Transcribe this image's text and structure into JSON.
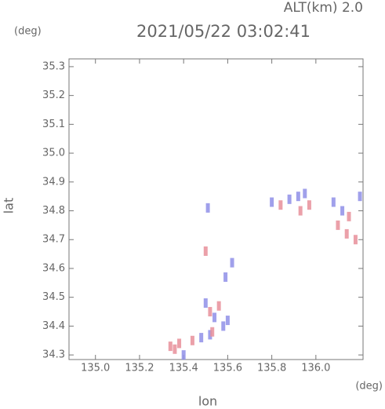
{
  "chart_data": {
    "type": "scatter",
    "title": "2021/05/22 03:02:41",
    "altitude_label": "ALT(km) 2.0",
    "y_unit": "(deg)",
    "x_unit": "(deg)",
    "xlabel": "lon",
    "ylabel": "lat",
    "xlim": [
      134.88,
      136.214
    ],
    "ylim": [
      34.284,
      35.327
    ],
    "xticks": [
      {
        "value": 135.0,
        "label": "135.0"
      },
      135.2,
      135.4,
      135.6,
      135.8,
      {
        "value": 136.0,
        "label": "136.0"
      }
    ],
    "yticks": [
      34.3,
      34.4,
      34.5,
      34.6,
      34.7,
      34.8,
      34.9,
      {
        "value": 35.0,
        "label": "35.0"
      },
      35.1,
      35.2,
      35.3
    ],
    "series": [
      {
        "color": "#8f8fe8",
        "x": [
          135.8,
          135.88,
          135.92,
          135.95,
          136.08,
          136.12,
          136.2,
          135.5,
          135.54,
          135.58,
          135.6,
          135.62,
          135.59,
          135.4,
          135.48,
          135.52,
          135.51
        ],
        "y": [
          34.83,
          34.84,
          34.85,
          34.86,
          34.83,
          34.8,
          34.85,
          34.48,
          34.43,
          34.4,
          34.42,
          34.62,
          34.57,
          34.3,
          34.36,
          34.37,
          34.81
        ]
      },
      {
        "color": "#e88f9a",
        "x": [
          135.84,
          135.97,
          135.93,
          136.15,
          136.1,
          136.14,
          136.18,
          135.52,
          135.56,
          135.53,
          135.5,
          135.36,
          135.44,
          135.38,
          135.34
        ],
        "y": [
          34.82,
          34.82,
          34.8,
          34.78,
          34.75,
          34.72,
          34.7,
          34.45,
          34.47,
          34.38,
          34.66,
          34.32,
          34.35,
          34.34,
          34.33
        ]
      }
    ]
  }
}
